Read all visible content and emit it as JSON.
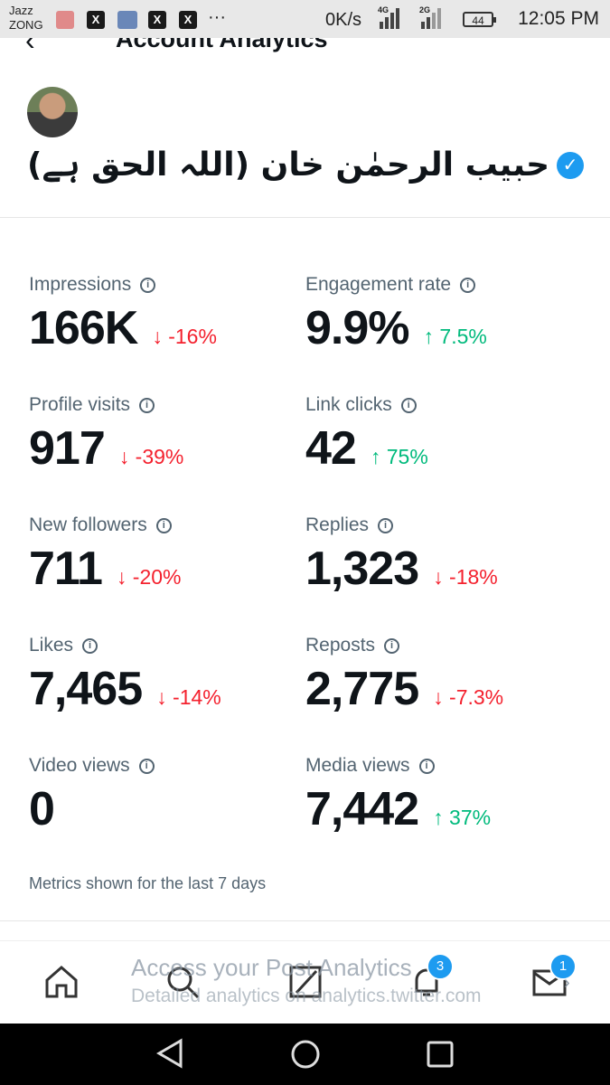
{
  "status_bar": {
    "carrier_1": "Jazz",
    "carrier_2": "ZONG",
    "speed": "0K/s",
    "net1": "4G",
    "net2": "2G",
    "battery": "44",
    "time": "12:05 PM",
    "more": "···",
    "x_glyph": "X"
  },
  "header": {
    "title": "Account Analytics",
    "back": "‹"
  },
  "profile": {
    "name": "حبیب الرحمٰن خان (اللہ الحق ہے)",
    "verified_mark": "✓"
  },
  "metrics": [
    {
      "label": "Impressions",
      "value": "166K",
      "change": "-16%",
      "dir": "down"
    },
    {
      "label": "Engagement rate",
      "value": "9.9%",
      "change": "7.5%",
      "dir": "up"
    },
    {
      "label": "Profile visits",
      "value": "917",
      "change": "-39%",
      "dir": "down"
    },
    {
      "label": "Link clicks",
      "value": "42",
      "change": "75%",
      "dir": "up"
    },
    {
      "label": "New followers",
      "value": "711",
      "change": "-20%",
      "dir": "down"
    },
    {
      "label": "Replies",
      "value": "1,323",
      "change": "-18%",
      "dir": "down"
    },
    {
      "label": "Likes",
      "value": "7,465",
      "change": "-14%",
      "dir": "down"
    },
    {
      "label": "Reposts",
      "value": "2,775",
      "change": "-7.3%",
      "dir": "down"
    },
    {
      "label": "Video views",
      "value": "0",
      "change": "",
      "dir": "none"
    },
    {
      "label": "Media views",
      "value": "7,442",
      "change": "37%",
      "dir": "up"
    }
  ],
  "footnote": "Metrics shown for the last 7 days",
  "promo": {
    "title": "Access your Post Analytics",
    "subtitle": "Detailed analytics on analytics.twitter.com"
  },
  "nav": {
    "notifications_badge": "3",
    "messages_badge": "1"
  },
  "colors": {
    "down": "#f4212e",
    "up": "#00ba7c",
    "accent": "#1d9bf0"
  }
}
